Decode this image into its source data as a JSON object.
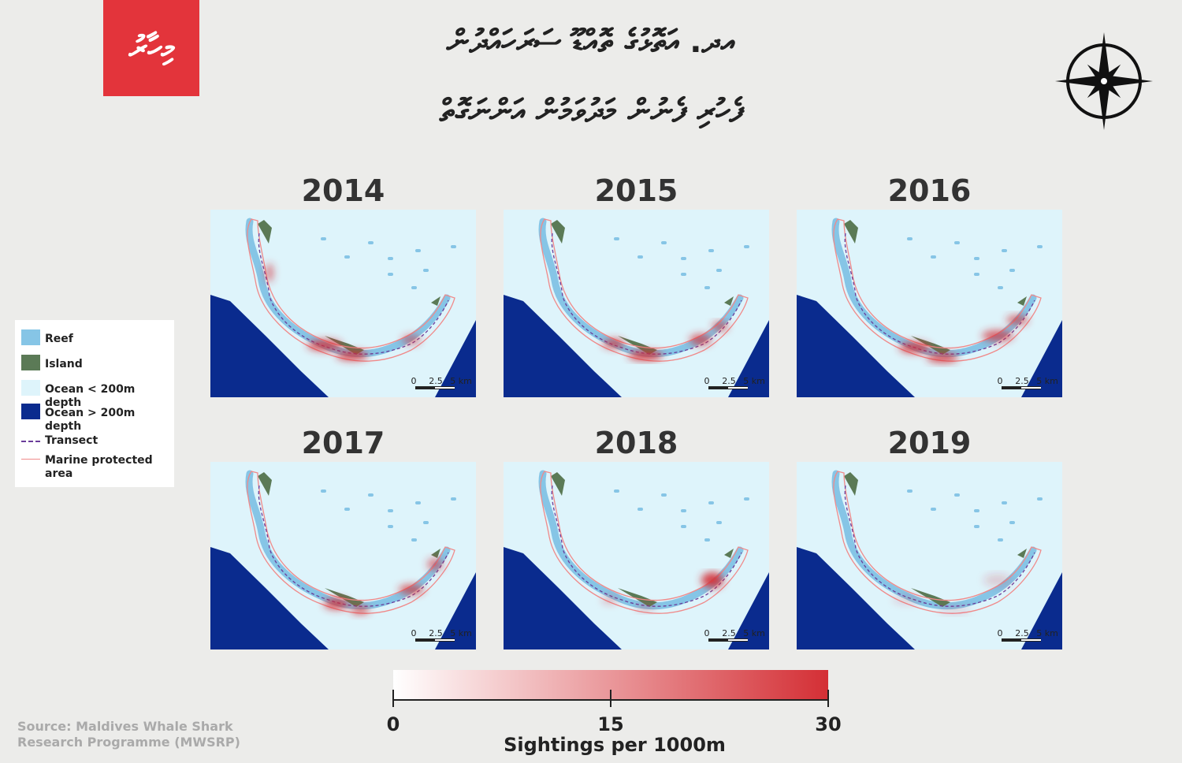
{
  "logo": "މިހާރު",
  "title": {
    "line1": "އދ. އަތޮޅުގެ ތޮއްޑޫ ސަރަހައްދުން",
    "line2": "ފެހުރި ފެނުން މަދުވަމުން އަންނަގޮތް"
  },
  "maps": [
    {
      "year": "2014"
    },
    {
      "year": "2015"
    },
    {
      "year": "2016"
    },
    {
      "year": "2017"
    },
    {
      "year": "2018"
    },
    {
      "year": "2019"
    }
  ],
  "scale_bar": [
    "0",
    "2.5",
    "5 km"
  ],
  "legend": [
    "Reef",
    "Island",
    "Ocean < 200m depth",
    "Ocean > 200m depth",
    "Transect",
    "Marine protected area"
  ],
  "colorbar": {
    "ticks": [
      0,
      15,
      30
    ],
    "lim": [
      0,
      30
    ],
    "label": "Sightings per 1000m"
  },
  "source": "Source: Maldives Whale Shark Research Programme (MWSRP)"
}
